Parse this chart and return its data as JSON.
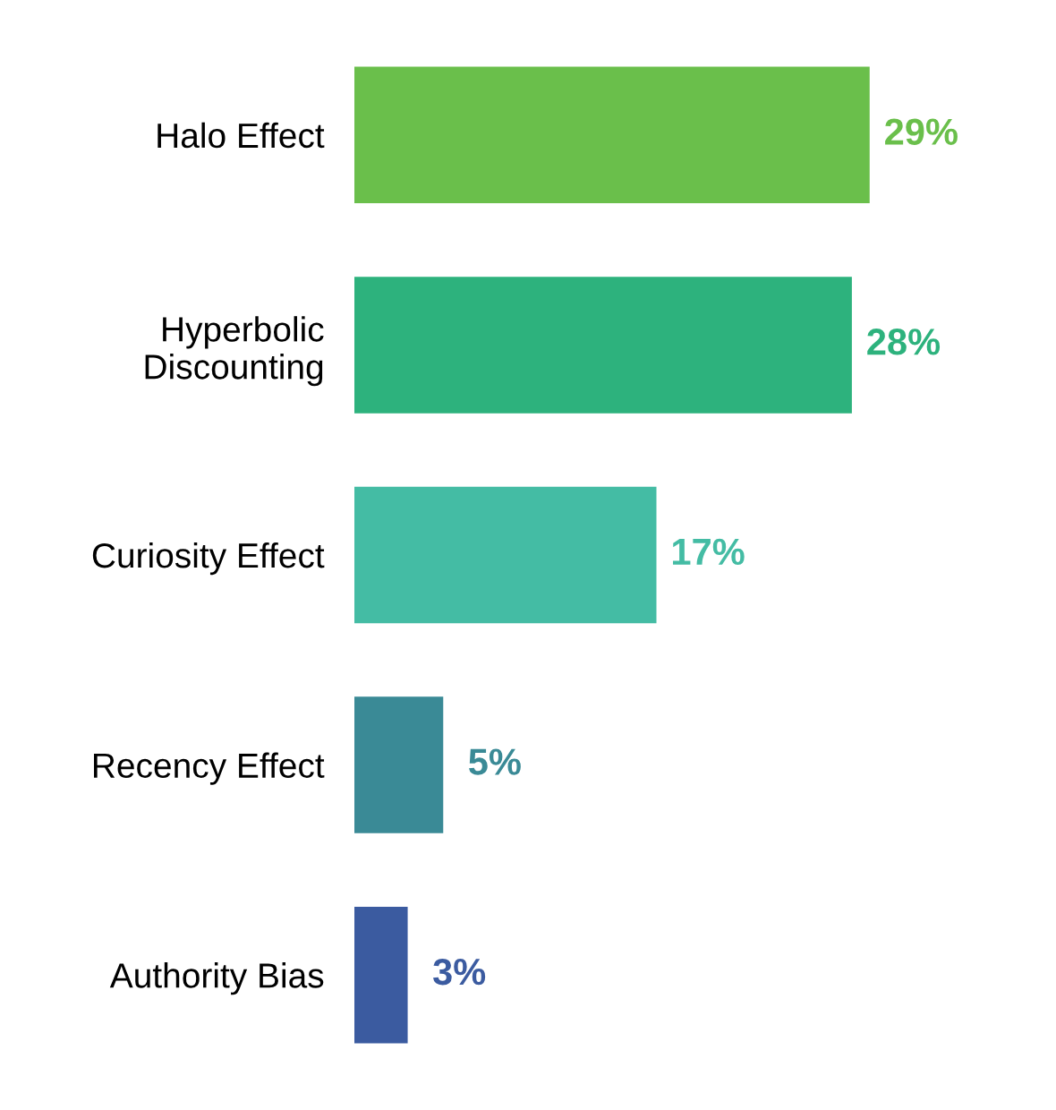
{
  "chart_data": {
    "type": "bar",
    "orientation": "horizontal",
    "categories": [
      "Halo Effect",
      "Hyperbolic\nDiscounting",
      "Curiosity Effect",
      "Recency Effect",
      "Authority Bias"
    ],
    "values": [
      29,
      28,
      17,
      5,
      3
    ],
    "colors": [
      "#6abf4b",
      "#2db27d",
      "#44bca4",
      "#3a8a96",
      "#3b5ba0"
    ],
    "value_labels": [
      "29%",
      "28%",
      "17%",
      "5%",
      "3%"
    ]
  }
}
